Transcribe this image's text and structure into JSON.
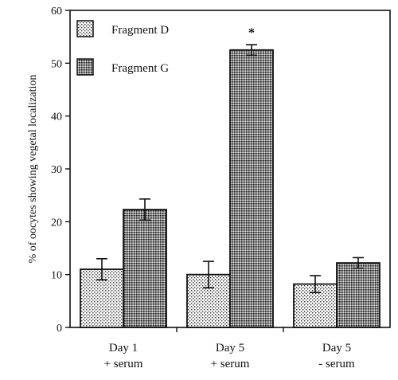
{
  "chart_data": {
    "type": "bar",
    "ylabel": "% of oocytes showing vegetal localization",
    "ylim": [
      0,
      60
    ],
    "yticks": [
      0,
      10,
      20,
      30,
      40,
      50,
      60
    ],
    "categories": [
      {
        "line1": "Day 1",
        "line2": "+ serum"
      },
      {
        "line1": "Day 5",
        "line2": "+ serum"
      },
      {
        "line1": "Day 5",
        "line2": "- serum"
      }
    ],
    "series": [
      {
        "name": "Fragment D",
        "pattern": "light-dots",
        "values": [
          11,
          10,
          8.2
        ],
        "errors": [
          2,
          2.5,
          1.6
        ]
      },
      {
        "name": "Fragment G",
        "pattern": "dense-dots",
        "values": [
          22.3,
          52.5,
          12.2
        ],
        "errors": [
          2,
          1,
          1
        ]
      }
    ],
    "annotations": [
      {
        "category_index": 1,
        "series_index": 1,
        "text": "*"
      }
    ],
    "legend_position": "top-left",
    "grid": false
  }
}
